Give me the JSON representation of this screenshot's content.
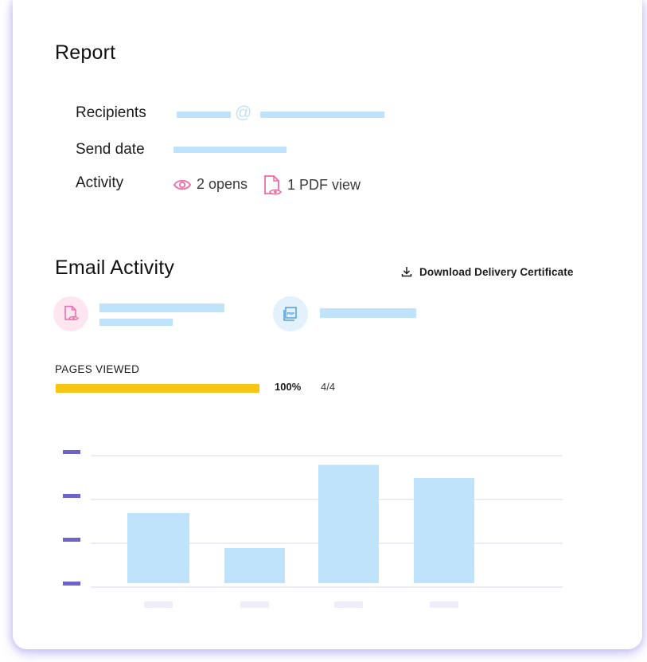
{
  "report": {
    "title": "Report",
    "recipients_label": "Recipients",
    "send_date_label": "Send date",
    "activity_label": "Activity",
    "opens": "2 opens",
    "pdf_views": "1 PDF view"
  },
  "email_activity": {
    "title": "Email Activity",
    "download_label": "Download Delivery Certificate"
  },
  "pages_viewed": {
    "label": "PAGES VIEWED",
    "percent_text": "100%",
    "fraction_text": "4/4",
    "progress": 1.0
  },
  "chart_data": {
    "type": "bar",
    "categories": [
      "",
      "",
      "",
      ""
    ],
    "values": [
      1.6,
      0.8,
      2.7,
      2.4
    ],
    "ylim": [
      0,
      3
    ],
    "grid": true,
    "bar_color": "#bfe3fb"
  },
  "colors": {
    "placeholder": "#bfe3fb",
    "progress": "#f9c514",
    "axis_ticks": "#6e63c8",
    "pink_icon": "#f06aa8",
    "blue_icon": "#3c8fd6"
  },
  "icons": {
    "at": "@",
    "eye": "eye-icon",
    "pdf_doc": "pdf-document-eye-icon",
    "download": "download-icon",
    "pdf_badge": "pdf-badge-icon"
  }
}
